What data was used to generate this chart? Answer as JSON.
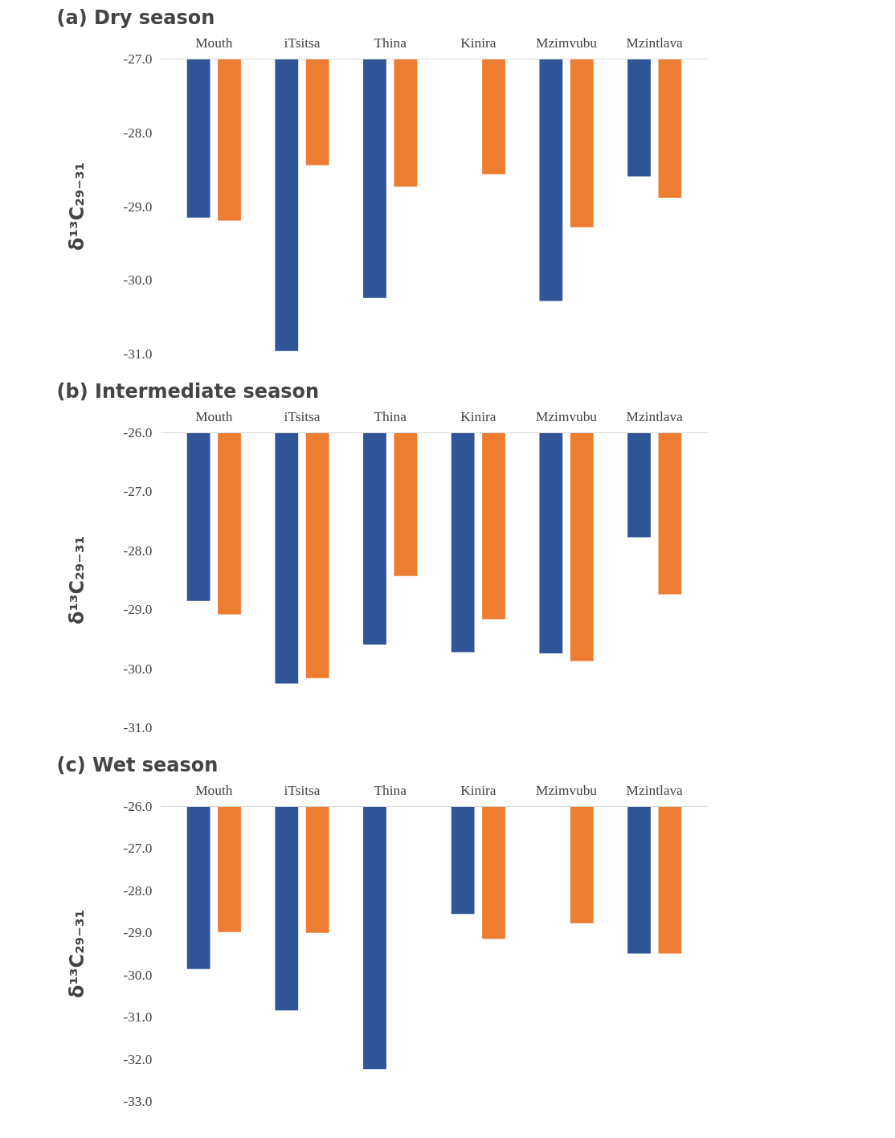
{
  "chart_data": [
    {
      "type": "bar",
      "title": "(a)  Dry season",
      "ylabel": "δ¹³C₂₉₋₃₁",
      "categories": [
        "Mouth",
        "iTsitsa",
        "Thina",
        "Kinira",
        "Mzimvubu",
        "Mzintlava"
      ],
      "series": [
        {
          "color": "#2f5597",
          "values": [
            -29.15,
            -30.96,
            -30.24,
            null,
            -30.28,
            -28.59
          ]
        },
        {
          "color": "#ed7d31",
          "values": [
            -29.19,
            -28.44,
            -28.73,
            -28.56,
            -29.28,
            -28.88
          ]
        }
      ],
      "ylim": [
        -31.0,
        -27.0
      ],
      "yticks": [
        {
          "value": -27,
          "label": "-27.0"
        },
        {
          "value": -28,
          "label": "-28.0"
        },
        {
          "value": -29,
          "label": "-29.0"
        },
        {
          "value": -30,
          "label": "-30.0"
        },
        {
          "value": -31,
          "label": "-31.0"
        }
      ],
      "grid": false
    },
    {
      "type": "bar",
      "title": "(b)  Intermediate season",
      "ylabel": "δ¹³C₂₉₋₃₁",
      "categories": [
        "Mouth",
        "iTsitsa",
        "Thina",
        "Kinira",
        "Mzimvubu",
        "Mzintlava"
      ],
      "series": [
        {
          "color": "#2f5597",
          "values": [
            -28.85,
            -30.25,
            -29.59,
            -29.72,
            -29.74,
            -27.77
          ]
        },
        {
          "color": "#ed7d31",
          "values": [
            -29.08,
            -30.16,
            -28.43,
            -29.16,
            -29.87,
            -28.74
          ]
        }
      ],
      "ylim": [
        -31.0,
        -26.0
      ],
      "yticks": [
        {
          "value": -26,
          "label": "-26.0"
        },
        {
          "value": -27,
          "label": "-27.0"
        },
        {
          "value": -28,
          "label": "-28.0"
        },
        {
          "value": -29,
          "label": "-29.0"
        },
        {
          "value": -30,
          "label": "-30.0"
        },
        {
          "value": -31,
          "label": "-31.0"
        }
      ],
      "grid": false
    },
    {
      "type": "bar",
      "title": "(c)  Wet season",
      "ylabel": "δ¹³C₂₉₋₃₁",
      "categories": [
        "Mouth",
        "iTsitsa",
        "Thina",
        "Kinira",
        "Mzimvubu",
        "Mzintlava"
      ],
      "series": [
        {
          "color": "#2f5597",
          "values": [
            -29.86,
            -30.84,
            -32.23,
            -28.55,
            null,
            -29.49
          ]
        },
        {
          "color": "#ed7d31",
          "values": [
            -28.98,
            -29.0,
            null,
            -29.14,
            -28.77,
            -29.49
          ]
        }
      ],
      "ylim": [
        -33.0,
        -26.0
      ],
      "yticks": [
        {
          "value": -26,
          "label": "-26.0"
        },
        {
          "value": -27,
          "label": "-27.0"
        },
        {
          "value": -28,
          "label": "-28.0"
        },
        {
          "value": -29,
          "label": "-29.0"
        },
        {
          "value": -30,
          "label": "-30.0"
        },
        {
          "value": -31,
          "label": "-31.0"
        },
        {
          "value": -32,
          "label": "-32.0"
        },
        {
          "value": -33,
          "label": "-33.0"
        }
      ],
      "grid": false
    }
  ]
}
